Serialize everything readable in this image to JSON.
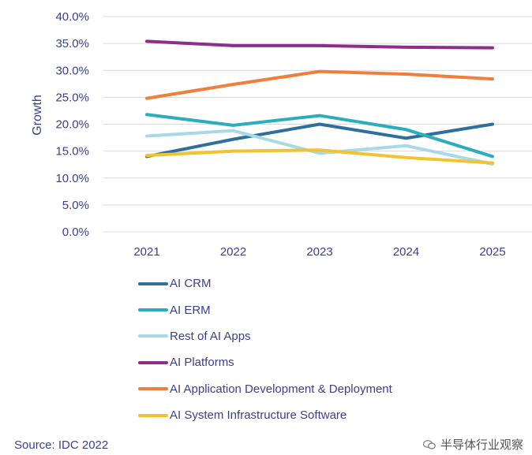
{
  "chart_data": {
    "type": "line",
    "x": [
      "2021",
      "2022",
      "2023",
      "2024",
      "2025"
    ],
    "ylabel": "Growth",
    "xlabel": "",
    "ylim": [
      0,
      40
    ],
    "yticks": [
      0,
      5,
      10,
      15,
      20,
      25,
      30,
      35,
      40
    ],
    "ytick_labels": [
      "0.0%",
      "5.0%",
      "10.0%",
      "15.0%",
      "20.0%",
      "25.0%",
      "30.0%",
      "35.0%",
      "40.0%"
    ],
    "grid": true,
    "legend_position": "bottom",
    "series": [
      {
        "name": "AI CRM",
        "color": "#2e6f9e",
        "values": [
          14.0,
          17.2,
          20.0,
          17.4,
          20.0
        ]
      },
      {
        "name": "AI ERM",
        "color": "#2aaebd",
        "values": [
          21.8,
          19.8,
          21.6,
          19.0,
          14.0
        ]
      },
      {
        "name": "Rest of AI Apps",
        "color": "#a9d9e6",
        "values": [
          17.8,
          18.8,
          14.6,
          16.0,
          12.6
        ]
      },
      {
        "name": "AI Platforms",
        "color": "#8b2f8a",
        "values": [
          35.4,
          34.6,
          34.6,
          34.3,
          34.2
        ]
      },
      {
        "name": "AI Application Development & Deployment",
        "color": "#ef7f3a",
        "values": [
          24.8,
          27.4,
          29.8,
          29.3,
          28.4
        ]
      },
      {
        "name": "AI System Infrastructure Software",
        "color": "#f2c230",
        "values": [
          14.2,
          15.0,
          15.2,
          13.8,
          12.8
        ]
      }
    ]
  },
  "source": "Source: IDC 2022",
  "watermark": "半导体行业观察",
  "colors": {
    "text": "#3b3f8f",
    "grid": "#d9d9e6"
  }
}
